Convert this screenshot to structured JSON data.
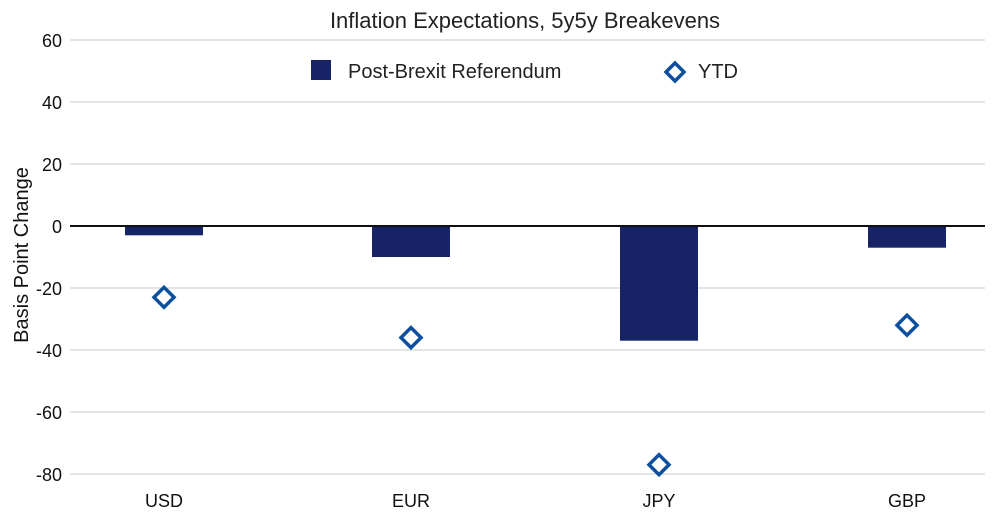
{
  "chart_data": {
    "type": "bar",
    "title": "Inflation Expectations, 5y5y Breakevens",
    "ylabel": "Basis Point Change",
    "xlabel": "",
    "ylim": [
      -80,
      60
    ],
    "yticks": [
      60,
      40,
      20,
      0,
      -20,
      -40,
      -60,
      -80
    ],
    "ytick_labels": [
      "60",
      "40",
      "20",
      "0",
      "-20",
      "-40",
      "-60",
      "-80"
    ],
    "categories": [
      "USD",
      "EUR",
      "JPY",
      "GBP"
    ],
    "series": [
      {
        "name": "Post-Brexit Referendum",
        "kind": "bar",
        "color": "#162466",
        "values": [
          -3,
          -10,
          -37,
          -7
        ]
      },
      {
        "name": "YTD",
        "kind": "diamond",
        "color": "#0d4f9e",
        "values": [
          -23,
          -36,
          -77,
          -32
        ]
      }
    ],
    "legend": "top-center",
    "grid": true
  }
}
